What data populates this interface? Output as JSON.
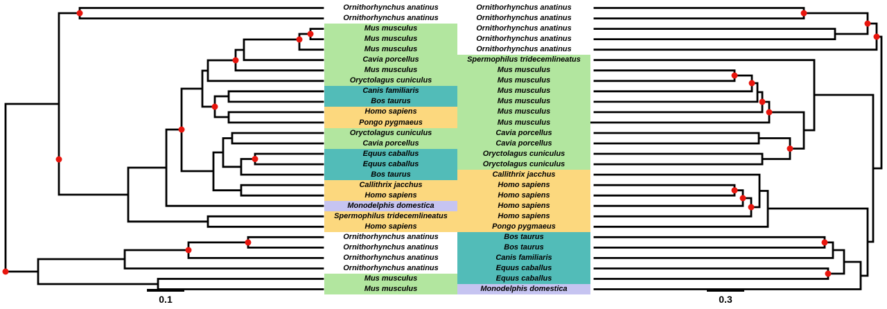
{
  "figure": {
    "type": "phylogenetic-tree-comparison",
    "left_scale_label": "0.1",
    "right_scale_label": "0.3"
  },
  "colors": {
    "green": "#b2e69f",
    "teal": "#52bcb8",
    "yellow": "#fcd87e",
    "lavender": "#c6c4f1",
    "dot_red": "#e8150d",
    "branch": "#000000"
  },
  "left_labels": [
    {
      "text": "Ornithorhynchus anatinus",
      "bg": "none"
    },
    {
      "text": "Ornithorhynchus anatinus",
      "bg": "none"
    },
    {
      "text": "Mus musculus",
      "bg": "green"
    },
    {
      "text": "Mus musculus",
      "bg": "green"
    },
    {
      "text": "Mus musculus",
      "bg": "green"
    },
    {
      "text": "Cavia porcellus",
      "bg": "green"
    },
    {
      "text": "Mus musculus",
      "bg": "green"
    },
    {
      "text": "Oryctolagus cuniculus",
      "bg": "green"
    },
    {
      "text": "Canis familiaris",
      "bg": "teal"
    },
    {
      "text": "Bos taurus",
      "bg": "teal"
    },
    {
      "text": "Homo sapiens",
      "bg": "yellow"
    },
    {
      "text": "Pongo pygmaeus",
      "bg": "yellow"
    },
    {
      "text": "Oryctolagus cuniculus",
      "bg": "green"
    },
    {
      "text": "Cavia porcellus",
      "bg": "green"
    },
    {
      "text": "Equus caballus",
      "bg": "teal"
    },
    {
      "text": "Equus caballus",
      "bg": "teal"
    },
    {
      "text": "Bos taurus",
      "bg": "teal"
    },
    {
      "text": "Callithrix jacchus",
      "bg": "yellow"
    },
    {
      "text": "Homo sapiens",
      "bg": "yellow"
    },
    {
      "text": "Monodelphis domestica",
      "bg": "lavender"
    },
    {
      "text": "Spermophilus tridecemlineatus",
      "bg": "yellow"
    },
    {
      "text": "Homo sapiens",
      "bg": "yellow"
    },
    {
      "text": "Ornithorhynchus anatinus",
      "bg": "none"
    },
    {
      "text": "Ornithorhynchus anatinus",
      "bg": "none"
    },
    {
      "text": "Ornithorhynchus anatinus",
      "bg": "none"
    },
    {
      "text": "Ornithorhynchus anatinus",
      "bg": "none"
    },
    {
      "text": "Mus musculus",
      "bg": "green"
    },
    {
      "text": "Mus musculus",
      "bg": "green"
    }
  ],
  "right_labels": [
    {
      "text": "Ornithorhynchus anatinus",
      "bg": "none"
    },
    {
      "text": "Ornithorhynchus anatinus",
      "bg": "none"
    },
    {
      "text": "Ornithorhynchus anatinus",
      "bg": "none"
    },
    {
      "text": "Ornithorhynchus anatinus",
      "bg": "none"
    },
    {
      "text": "Ornithorhynchus anatinus",
      "bg": "none"
    },
    {
      "text": "Spermophilus tridecemlineatus",
      "bg": "green"
    },
    {
      "text": "Mus musculus",
      "bg": "green"
    },
    {
      "text": "Mus musculus",
      "bg": "green"
    },
    {
      "text": "Mus musculus",
      "bg": "green"
    },
    {
      "text": "Mus musculus",
      "bg": "green"
    },
    {
      "text": "Mus musculus",
      "bg": "green"
    },
    {
      "text": "Mus musculus",
      "bg": "green"
    },
    {
      "text": "Cavia porcellus",
      "bg": "green"
    },
    {
      "text": "Cavia porcellus",
      "bg": "green"
    },
    {
      "text": "Oryctolagus cuniculus",
      "bg": "green"
    },
    {
      "text": "Oryctolagus cuniculus",
      "bg": "green"
    },
    {
      "text": "Callithrix jacchus",
      "bg": "yellow"
    },
    {
      "text": "Homo sapiens",
      "bg": "yellow"
    },
    {
      "text": "Homo sapiens",
      "bg": "yellow"
    },
    {
      "text": "Homo sapiens",
      "bg": "yellow"
    },
    {
      "text": "Homo sapiens",
      "bg": "yellow"
    },
    {
      "text": "Pongo pygmaeus",
      "bg": "yellow"
    },
    {
      "text": "Bos taurus",
      "bg": "teal"
    },
    {
      "text": "Bos taurus",
      "bg": "teal"
    },
    {
      "text": "Canis familiaris",
      "bg": "teal"
    },
    {
      "text": "Equus caballus",
      "bg": "teal"
    },
    {
      "text": "Equus caballus",
      "bg": "teal"
    },
    {
      "text": "Monodelphis domestica",
      "bg": "lavender"
    }
  ]
}
